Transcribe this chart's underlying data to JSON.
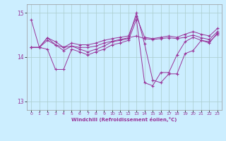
{
  "xlabel": "Windchill (Refroidissement éolien,°C)",
  "background_color": "#cceeff",
  "grid_color": "#aacccc",
  "line_color": "#993399",
  "xlim": [
    -0.5,
    23.5
  ],
  "ylim": [
    12.8,
    15.2
  ],
  "yticks": [
    13,
    14,
    15
  ],
  "xticks": [
    0,
    1,
    2,
    3,
    4,
    5,
    6,
    7,
    8,
    9,
    10,
    11,
    12,
    13,
    14,
    15,
    16,
    17,
    18,
    19,
    20,
    21,
    22,
    23
  ],
  "series": {
    "line1": {
      "x": [
        0,
        1,
        2,
        3,
        4,
        5,
        6,
        7,
        8,
        9,
        10,
        11,
        12,
        13,
        14,
        15,
        16,
        17,
        18,
        19,
        20,
        21,
        22,
        23
      ],
      "y": [
        14.85,
        14.22,
        14.44,
        14.35,
        14.22,
        14.32,
        14.28,
        14.28,
        14.32,
        14.38,
        14.42,
        14.45,
        14.48,
        14.92,
        14.45,
        14.42,
        14.45,
        14.48,
        14.45,
        14.52,
        14.58,
        14.52,
        14.48,
        14.65
      ]
    },
    "line2": {
      "x": [
        0,
        1,
        2,
        3,
        4,
        5,
        6,
        7,
        8,
        9,
        10,
        11,
        12,
        13,
        14,
        15,
        16,
        17,
        18,
        19,
        20,
        21,
        22,
        23
      ],
      "y": [
        14.22,
        14.22,
        14.38,
        14.28,
        14.15,
        14.25,
        14.22,
        14.22,
        14.25,
        14.32,
        14.36,
        14.4,
        14.44,
        14.48,
        14.42,
        14.4,
        14.42,
        14.44,
        14.42,
        14.45,
        14.5,
        14.44,
        14.4,
        14.58
      ]
    },
    "line3": {
      "x": [
        0,
        1,
        2,
        3,
        4,
        5,
        6,
        7,
        8,
        9,
        10,
        11,
        12,
        13,
        14,
        15,
        16,
        17,
        18,
        19,
        20,
        21,
        22,
        23
      ],
      "y": [
        14.22,
        14.22,
        14.44,
        14.28,
        14.22,
        14.25,
        14.18,
        14.12,
        14.18,
        14.25,
        14.35,
        14.38,
        14.42,
        15.0,
        14.3,
        13.48,
        13.42,
        13.62,
        13.62,
        14.08,
        14.15,
        14.38,
        14.32,
        14.55
      ]
    },
    "line4": {
      "x": [
        0,
        1,
        2,
        3,
        4,
        5,
        6,
        7,
        8,
        9,
        10,
        11,
        12,
        13,
        14,
        15,
        16,
        17,
        18,
        19,
        20,
        21,
        22,
        23
      ],
      "y": [
        14.22,
        14.22,
        14.18,
        13.72,
        13.72,
        14.18,
        14.12,
        14.05,
        14.12,
        14.18,
        14.28,
        14.32,
        14.38,
        14.85,
        13.42,
        13.35,
        13.65,
        13.65,
        14.05,
        14.35,
        14.45,
        14.38,
        14.35,
        14.52
      ]
    }
  }
}
